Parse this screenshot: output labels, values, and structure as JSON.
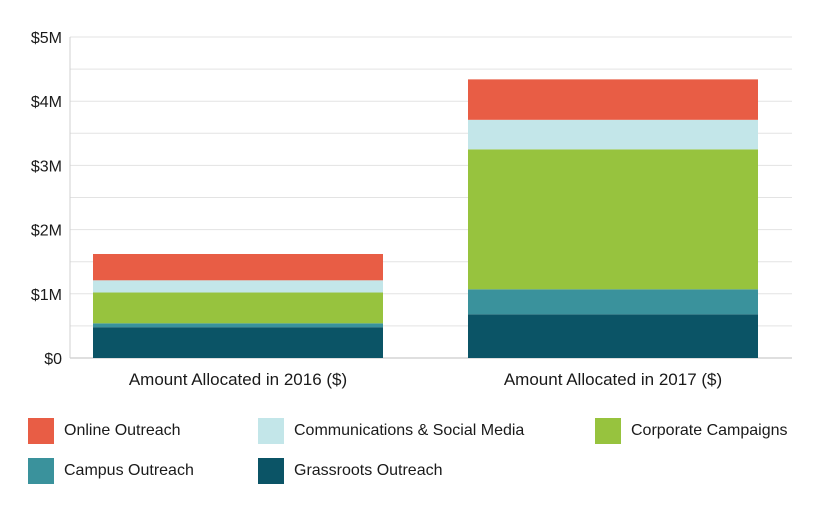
{
  "chart_data": {
    "type": "bar",
    "stacked": true,
    "categories": [
      "Amount Allocated in 2016 ($)",
      "Amount Allocated in 2017 ($)"
    ],
    "series": [
      {
        "name": "Grassroots Outreach",
        "color": "#0b5466",
        "values": [
          0.48,
          0.68
        ]
      },
      {
        "name": "Campus Outreach",
        "color": "#3a929c",
        "values": [
          0.06,
          0.39
        ]
      },
      {
        "name": "Corporate Campaigns",
        "color": "#97c33e",
        "values": [
          0.48,
          2.18
        ]
      },
      {
        "name": "Communications & Social Media",
        "color": "#c3e6e9",
        "values": [
          0.19,
          0.46
        ]
      },
      {
        "name": "Online Outreach",
        "color": "#e85d45",
        "values": [
          0.41,
          0.63
        ]
      }
    ],
    "yticks": [
      "$0",
      "$1M",
      "$2M",
      "$3M",
      "$4M",
      "$5M"
    ],
    "ylim": [
      0,
      5
    ],
    "grid": true,
    "legend_position": "bottom"
  },
  "legend_order": [
    4,
    3,
    2,
    1,
    0
  ]
}
